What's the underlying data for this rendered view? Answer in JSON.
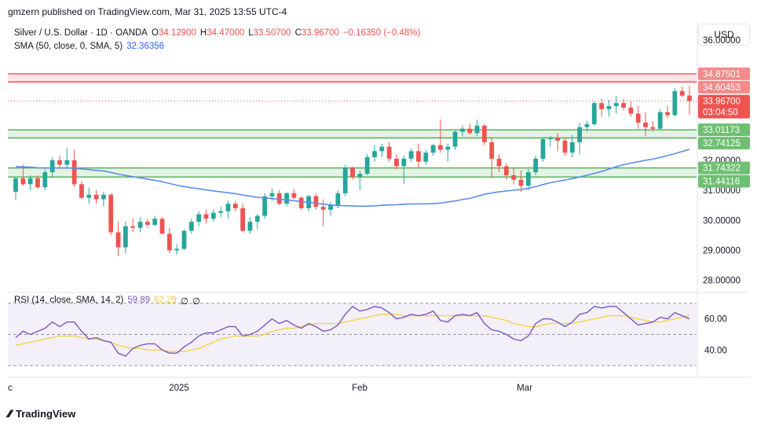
{
  "header": {
    "published": "gmzern published on TradingView.com, Mar 31, 2025 13:55 UTC-4"
  },
  "legend": {
    "symbol": "Silver / U.S. Dollar · 1D · OANDA",
    "open_label": "O",
    "open": "34.12900",
    "high_label": "H",
    "high": "34.47000",
    "low_label": "L",
    "low": "33.50700",
    "close_label": "C",
    "close": "33.96700",
    "change": "−0.16350 (−0.48%)",
    "sma_label": "SMA (50, close, 0, SMA, 5)",
    "sma_value": "32.36356"
  },
  "rsi_legend": {
    "label": "RSI (14, close, SMA, 14, 2)",
    "rsi_value": "59.89",
    "sma_value": "62.29",
    "extra1": "∅",
    "extra2": "∅"
  },
  "currency": "USD",
  "footer": {
    "brand": "TradingView"
  },
  "colors": {
    "up": "#26a69a",
    "down": "#ef5350",
    "sma": "#5b8def",
    "rsi": "#7e57c2",
    "rsi_sma": "#f5d442",
    "resistance": "#ef5350",
    "support": "#4caf50"
  },
  "chart_data": {
    "type": "candlestick",
    "ylim": [
      27.6,
      36.6
    ],
    "y_ticks": [
      "36.00000",
      "32.00000",
      "31.00000",
      "30.00000",
      "29.00000",
      "28.00000"
    ],
    "x_tick_labels": [
      "c",
      "2025",
      "Feb",
      "Mar"
    ],
    "price_tags": [
      {
        "label": "34.87501",
        "value": 34.875,
        "kind": "resistance"
      },
      {
        "label": "34.60453",
        "value": 34.605,
        "kind": "resistance"
      },
      {
        "label": "33.96700",
        "value": 33.967,
        "kind": "last",
        "countdown": "03:04:50"
      },
      {
        "label": "33.01173",
        "value": 33.012,
        "kind": "support"
      },
      {
        "label": "32.74125",
        "value": 32.741,
        "kind": "support"
      },
      {
        "label": "31.74322",
        "value": 31.743,
        "kind": "support"
      },
      {
        "label": "31.44116",
        "value": 31.441,
        "kind": "support"
      }
    ],
    "zones": [
      {
        "from": 34.605,
        "to": 34.875,
        "kind": "resistance"
      },
      {
        "from": 32.741,
        "to": 33.012,
        "kind": "support"
      },
      {
        "from": 31.441,
        "to": 31.743,
        "kind": "support"
      }
    ],
    "candles": [
      [
        30.95,
        31.45,
        30.7,
        31.4
      ],
      [
        31.4,
        31.85,
        31.15,
        31.2
      ],
      [
        31.2,
        31.5,
        31.0,
        31.4
      ],
      [
        31.4,
        31.5,
        31.05,
        31.1
      ],
      [
        31.1,
        31.7,
        31.0,
        31.6
      ],
      [
        31.6,
        32.1,
        31.45,
        32.0
      ],
      [
        32.0,
        32.15,
        31.75,
        31.85
      ],
      [
        31.85,
        32.4,
        31.7,
        32.0
      ],
      [
        32.0,
        32.35,
        31.1,
        31.2
      ],
      [
        31.2,
        31.3,
        30.7,
        30.75
      ],
      [
        30.75,
        31.1,
        30.55,
        30.85
      ],
      [
        30.85,
        31.0,
        30.55,
        30.7
      ],
      [
        30.7,
        30.95,
        30.45,
        30.85
      ],
      [
        30.85,
        30.9,
        29.5,
        29.6
      ],
      [
        29.6,
        29.95,
        28.8,
        29.1
      ],
      [
        29.1,
        29.95,
        28.9,
        29.8
      ],
      [
        29.8,
        30.05,
        29.6,
        29.75
      ],
      [
        29.75,
        30.1,
        29.6,
        29.95
      ],
      [
        29.95,
        30.05,
        29.75,
        29.85
      ],
      [
        29.85,
        30.15,
        29.8,
        30.05
      ],
      [
        30.05,
        30.1,
        29.55,
        29.55
      ],
      [
        29.55,
        29.75,
        28.9,
        29.0
      ],
      [
        29.0,
        29.2,
        28.85,
        29.05
      ],
      [
        29.05,
        29.7,
        29.0,
        29.65
      ],
      [
        29.65,
        30.05,
        29.55,
        29.95
      ],
      [
        29.95,
        30.3,
        29.8,
        30.2
      ],
      [
        30.2,
        30.35,
        29.9,
        30.05
      ],
      [
        30.05,
        30.35,
        29.95,
        30.25
      ],
      [
        30.25,
        30.45,
        30.1,
        30.3
      ],
      [
        30.3,
        30.65,
        30.05,
        30.55
      ],
      [
        30.55,
        30.65,
        30.3,
        30.4
      ],
      [
        30.4,
        30.55,
        29.6,
        29.65
      ],
      [
        29.65,
        30.1,
        29.55,
        29.95
      ],
      [
        29.95,
        30.2,
        29.7,
        30.15
      ],
      [
        30.15,
        30.9,
        30.05,
        30.8
      ],
      [
        30.8,
        31.05,
        30.65,
        30.9
      ],
      [
        30.9,
        31.0,
        30.5,
        30.55
      ],
      [
        30.55,
        30.95,
        30.45,
        30.9
      ],
      [
        30.9,
        31.05,
        30.7,
        30.75
      ],
      [
        30.75,
        30.8,
        30.35,
        30.4
      ],
      [
        30.4,
        30.85,
        30.3,
        30.8
      ],
      [
        30.8,
        30.9,
        30.35,
        30.45
      ],
      [
        30.45,
        30.7,
        29.8,
        30.35
      ],
      [
        30.35,
        30.6,
        30.15,
        30.5
      ],
      [
        30.5,
        31.0,
        30.4,
        30.9
      ],
      [
        30.9,
        31.85,
        30.8,
        31.75
      ],
      [
        31.75,
        31.8,
        31.35,
        31.45
      ],
      [
        31.45,
        31.65,
        31.0,
        31.55
      ],
      [
        31.55,
        32.2,
        31.5,
        32.1
      ],
      [
        32.1,
        32.5,
        31.95,
        32.3
      ],
      [
        32.3,
        32.55,
        32.1,
        32.45
      ],
      [
        32.45,
        32.6,
        31.95,
        32.05
      ],
      [
        32.05,
        32.2,
        31.7,
        31.8
      ],
      [
        31.8,
        32.15,
        31.2,
        32.05
      ],
      [
        32.05,
        32.4,
        31.95,
        32.3
      ],
      [
        32.3,
        32.55,
        31.75,
        31.95
      ],
      [
        31.95,
        32.35,
        31.85,
        32.25
      ],
      [
        32.25,
        32.55,
        32.15,
        32.5
      ],
      [
        32.5,
        33.35,
        32.25,
        32.35
      ],
      [
        32.35,
        32.55,
        31.95,
        32.45
      ],
      [
        32.45,
        33.0,
        32.35,
        32.95
      ],
      [
        32.95,
        33.15,
        32.8,
        33.05
      ],
      [
        33.05,
        33.2,
        32.85,
        32.9
      ],
      [
        32.9,
        33.35,
        32.8,
        33.15
      ],
      [
        33.15,
        33.2,
        32.5,
        32.6
      ],
      [
        32.6,
        32.75,
        31.4,
        32.05
      ],
      [
        32.05,
        32.2,
        31.6,
        31.8
      ],
      [
        31.8,
        31.9,
        31.35,
        31.5
      ],
      [
        31.5,
        31.75,
        31.2,
        31.35
      ],
      [
        31.35,
        31.65,
        30.95,
        31.15
      ],
      [
        31.15,
        31.7,
        31.0,
        31.6
      ],
      [
        31.6,
        32.15,
        31.5,
        32.05
      ],
      [
        32.05,
        32.75,
        31.95,
        32.7
      ],
      [
        32.7,
        32.8,
        32.45,
        32.75
      ],
      [
        32.75,
        32.9,
        32.3,
        32.65
      ],
      [
        32.65,
        32.75,
        32.15,
        32.25
      ],
      [
        32.25,
        32.85,
        32.1,
        32.6
      ],
      [
        32.6,
        33.25,
        32.2,
        33.1
      ],
      [
        33.1,
        33.3,
        32.95,
        33.2
      ],
      [
        33.2,
        33.95,
        33.15,
        33.9
      ],
      [
        33.9,
        34.05,
        33.45,
        33.7
      ],
      [
        33.7,
        34.0,
        33.45,
        33.8
      ],
      [
        33.8,
        34.15,
        33.55,
        33.9
      ],
      [
        33.9,
        34.05,
        33.65,
        33.75
      ],
      [
        33.75,
        33.95,
        33.45,
        33.55
      ],
      [
        33.55,
        33.8,
        33.05,
        33.25
      ],
      [
        33.25,
        33.6,
        32.8,
        33.1
      ],
      [
        33.1,
        33.3,
        32.95,
        33.05
      ],
      [
        33.05,
        33.7,
        33.0,
        33.6
      ],
      [
        33.6,
        33.8,
        33.4,
        33.5
      ],
      [
        33.5,
        34.4,
        33.45,
        34.3
      ],
      [
        34.3,
        34.45,
        34.1,
        34.15
      ],
      [
        34.15,
        34.47,
        33.51,
        33.97
      ]
    ],
    "sma_start_value": 31.8,
    "sma_last_value": 32.36,
    "rsi_ylim": [
      25,
      75
    ],
    "rsi_ticks": [
      "60.00",
      "40.00"
    ],
    "rsi_levels": [
      70,
      50,
      30
    ],
    "rsi_values": [
      48,
      52,
      50,
      52,
      54,
      58,
      55,
      58,
      58,
      52,
      47,
      48,
      46,
      45,
      38,
      36,
      41,
      43,
      44,
      44,
      40,
      38,
      38,
      42,
      45,
      49,
      51,
      51,
      53,
      55,
      55,
      49,
      50,
      52,
      56,
      60,
      57,
      59,
      56,
      54,
      57,
      55,
      52,
      53,
      56,
      63,
      68,
      65,
      66,
      68,
      67,
      64,
      60,
      61,
      63,
      62,
      63,
      65,
      59,
      58,
      62,
      63,
      62,
      64,
      57,
      53,
      52,
      50,
      47,
      46,
      49,
      57,
      60,
      60,
      58,
      55,
      58,
      63,
      64,
      68,
      67,
      68,
      68,
      64,
      60,
      56,
      57,
      58,
      61,
      60,
      64,
      62,
      60
    ],
    "rsi_sma_values": [
      43,
      44,
      45,
      46,
      47,
      48,
      49,
      49,
      49,
      48,
      47,
      47,
      46,
      45,
      43,
      42,
      41,
      41,
      40,
      40,
      40,
      39,
      39,
      39,
      40,
      41,
      43,
      45,
      47,
      48,
      49,
      49,
      49,
      49,
      50,
      52,
      53,
      54,
      54,
      55,
      56,
      57,
      57,
      57,
      57,
      58,
      59,
      60,
      61,
      62,
      63,
      63,
      63,
      62,
      62,
      62,
      62,
      62,
      62,
      62,
      62,
      62,
      62,
      62,
      62,
      61,
      60,
      59,
      57,
      56,
      55,
      55,
      56,
      57,
      57,
      57,
      57,
      58,
      59,
      60,
      61,
      62,
      62,
      62,
      61,
      60,
      59,
      58,
      58,
      59,
      60,
      61,
      62
    ]
  }
}
